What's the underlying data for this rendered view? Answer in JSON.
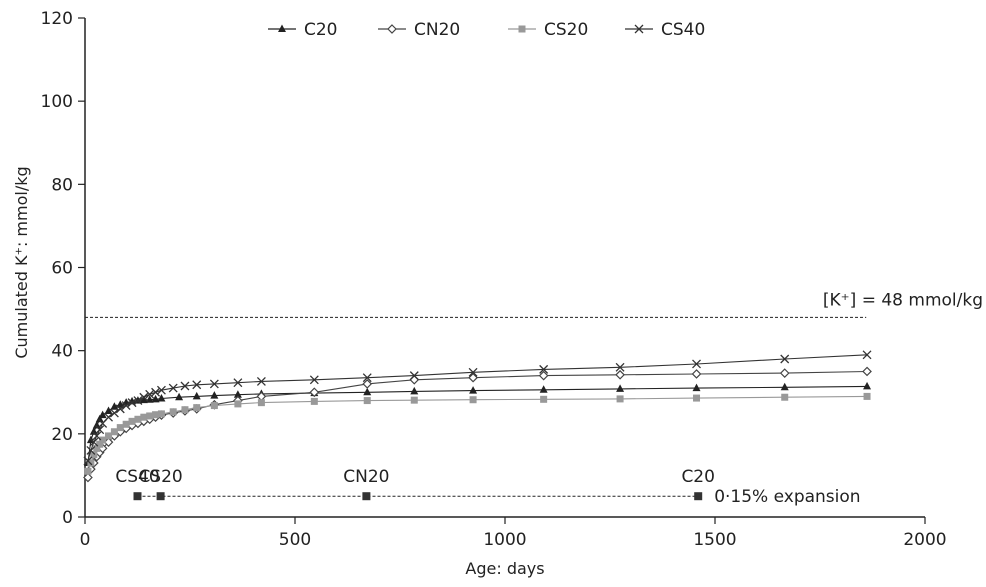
{
  "chart_data": {
    "type": "line",
    "title": "",
    "xlabel": "Age: days",
    "ylabel": "Cumulated K⁺: mmol/kg",
    "xlim": [
      0,
      2000
    ],
    "ylim": [
      0,
      120
    ],
    "xticks": [
      "0",
      "500",
      "1000",
      "1500",
      "2000"
    ],
    "yticks": [
      "0",
      "20",
      "40",
      "60",
      "80",
      "100",
      "120"
    ],
    "grid": false,
    "legend_position": "top",
    "legend": [
      "C20",
      "CN20",
      "CS20",
      "CS40"
    ],
    "series": [
      {
        "name": "C20",
        "marker": "triangle",
        "color": "#222222",
        "x": [
          7,
          14,
          21,
          28,
          35,
          42,
          56,
          70,
          84,
          98,
          112,
          126,
          140,
          154,
          168,
          182,
          224,
          266,
          308,
          364,
          420,
          546,
          672,
          784,
          924,
          1092,
          1274,
          1456,
          1666,
          1862
        ],
        "y": [
          13,
          18.5,
          20.5,
          22,
          23.5,
          24.5,
          25.5,
          26.5,
          27,
          27.5,
          27.8,
          28,
          28.1,
          28.2,
          28.3,
          28.5,
          28.8,
          29,
          29.2,
          29.4,
          29.6,
          29.8,
          30,
          30.2,
          30.4,
          30.6,
          30.8,
          31,
          31.2,
          31.4
        ]
      },
      {
        "name": "CN20",
        "marker": "diamond-open",
        "color": "#444444",
        "x": [
          7,
          14,
          21,
          28,
          35,
          42,
          56,
          70,
          84,
          98,
          112,
          126,
          140,
          154,
          168,
          182,
          210,
          238,
          266,
          308,
          364,
          420,
          546,
          672,
          784,
          924,
          1092,
          1274,
          1456,
          1666,
          1862
        ],
        "y": [
          9.5,
          11.5,
          13,
          14.5,
          15.5,
          16.5,
          18,
          19.5,
          20.5,
          21.3,
          22,
          22.5,
          23,
          23.5,
          24,
          24.5,
          25,
          25.5,
          26,
          27,
          28,
          29,
          30,
          32,
          33,
          33.5,
          34,
          34.2,
          34.4,
          34.6,
          35
        ]
      },
      {
        "name": "CS20",
        "marker": "square",
        "color": "#999999",
        "x": [
          7,
          14,
          21,
          28,
          35,
          42,
          56,
          70,
          84,
          98,
          112,
          126,
          140,
          154,
          168,
          182,
          210,
          238,
          266,
          308,
          364,
          420,
          546,
          672,
          784,
          924,
          1092,
          1274,
          1456,
          1666,
          1862
        ],
        "y": [
          11,
          13,
          15,
          16.5,
          17.5,
          18.5,
          19.5,
          20.5,
          21.5,
          22.3,
          23,
          23.5,
          24,
          24.3,
          24.6,
          24.8,
          25.3,
          25.8,
          26.3,
          26.8,
          27.2,
          27.5,
          27.8,
          28,
          28.1,
          28.2,
          28.3,
          28.4,
          28.6,
          28.8,
          29
        ]
      },
      {
        "name": "CS40",
        "marker": "x",
        "color": "#333333",
        "x": [
          7,
          14,
          21,
          28,
          35,
          42,
          56,
          70,
          84,
          98,
          112,
          126,
          140,
          154,
          168,
          182,
          210,
          238,
          266,
          308,
          364,
          420,
          546,
          672,
          784,
          924,
          1092,
          1274,
          1456,
          1666,
          1862
        ],
        "y": [
          13.5,
          16,
          18,
          19.5,
          21,
          22.5,
          24,
          25,
          26,
          26.8,
          27.5,
          28,
          28.8,
          29.5,
          30,
          30.5,
          31,
          31.5,
          31.8,
          32,
          32.3,
          32.6,
          33,
          33.5,
          34,
          34.8,
          35.5,
          36,
          36.8,
          38,
          39
        ]
      }
    ],
    "reference_line": {
      "y": 48,
      "x_range": [
        0,
        1860
      ],
      "label": "[K⁺] = 48 mmol/kg"
    },
    "expansion_markers": {
      "y": 5,
      "x_range": [
        125,
        1460
      ],
      "label": "0·15% expansion",
      "points": [
        {
          "x": 125,
          "label": "CS40"
        },
        {
          "x": 180,
          "label": "CS20"
        },
        {
          "x": 670,
          "label": "CN20"
        },
        {
          "x": 1460,
          "label": "C20"
        }
      ]
    }
  }
}
